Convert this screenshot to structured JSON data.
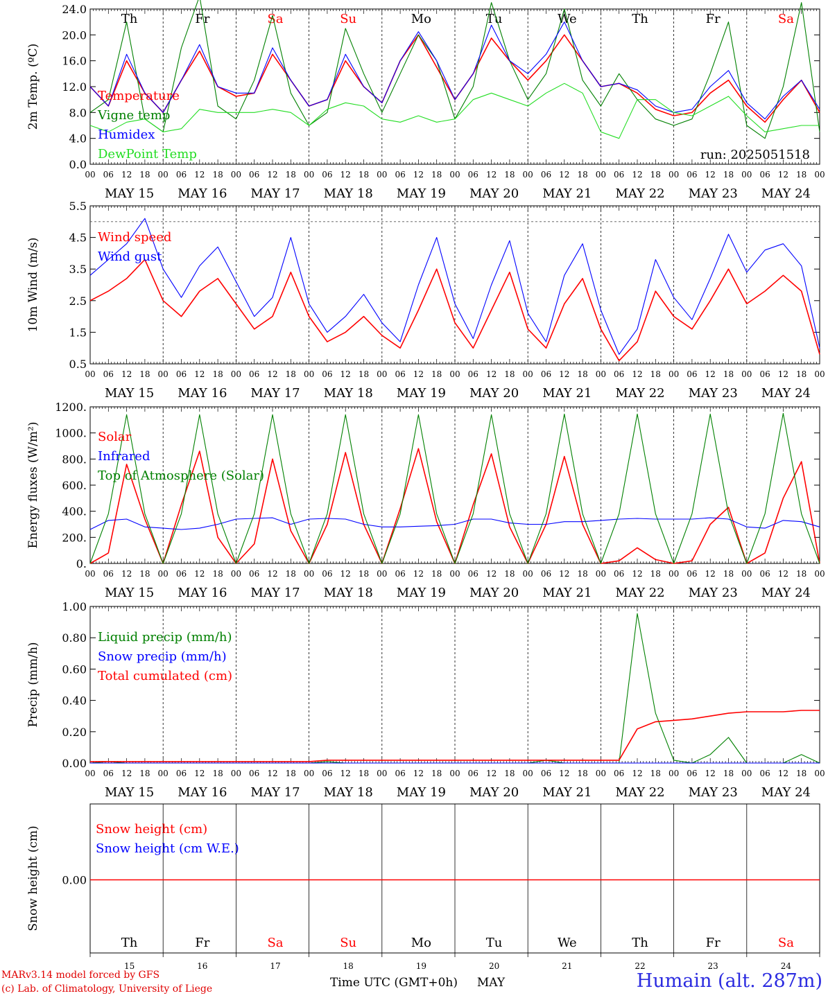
{
  "footer": {
    "credit_line1": "MARv3.14 model forced by GFS",
    "credit_line2": "(c) Lab. of Climatology, University of Liege",
    "station": "Humain (alt. 287m)",
    "time_axis_label": "Time UTC (GMT+0h)",
    "month": "MAY"
  },
  "colors": {
    "red": "#ff0000",
    "dark_green": "#008000",
    "blue": "#0000ff",
    "light_green": "#22dd22",
    "weekend": "#ff0000",
    "axis": "#000000"
  },
  "chart_data": [
    {
      "id": "temperature",
      "type": "line",
      "ylabel": "2m Temp. (ºC)",
      "ylim": [
        0,
        24
      ],
      "yticks": [
        "0.0",
        "4.0",
        "8.0",
        "12.0",
        "16.0",
        "20.0",
        "24.0"
      ],
      "annotation": "run: 2025051518",
      "day_labels": [
        "Th",
        "Fr",
        "Sa",
        "Su",
        "Mo",
        "Tu",
        "We",
        "Th",
        "Fr",
        "Sa"
      ],
      "weekend_days": [
        2,
        3,
        9
      ],
      "x_hours_per_point": 6,
      "series": [
        {
          "name": "Temperature",
          "color": "red",
          "values": [
            12,
            9,
            16,
            11,
            8,
            13,
            17.5,
            12,
            10.5,
            11,
            17,
            13,
            9,
            10,
            16,
            12,
            9.5,
            16,
            20,
            15,
            10,
            14,
            19.5,
            16,
            13,
            16,
            20,
            16,
            12,
            12.5,
            11,
            8.5,
            7.5,
            8,
            11,
            13,
            9,
            6.5,
            10,
            13,
            8
          ]
        },
        {
          "name": "Vigne temp",
          "color": "dark_green",
          "values": [
            8,
            10,
            22,
            7,
            5,
            18,
            26,
            9,
            7,
            13,
            23,
            11,
            6,
            8,
            21,
            14,
            8,
            14,
            20,
            16,
            7,
            12,
            25,
            16,
            10,
            14,
            24,
            13,
            9,
            14,
            10,
            7,
            6,
            7,
            14,
            22,
            6,
            4,
            12,
            25,
            5
          ]
        },
        {
          "name": "Humidex",
          "color": "blue",
          "values": [
            12,
            9,
            17,
            11,
            8,
            13,
            18.5,
            12,
            11,
            11,
            18,
            13,
            9,
            10,
            17,
            12,
            9.5,
            16,
            20.5,
            16,
            10,
            14,
            21.5,
            16,
            14,
            17,
            22,
            16,
            12,
            12.5,
            11.5,
            9,
            8,
            8.5,
            12,
            14.5,
            9.5,
            7,
            10.5,
            13,
            8.5
          ]
        },
        {
          "name": "DewPoint Temp",
          "color": "light_green",
          "values": [
            6,
            5,
            6.5,
            7,
            5,
            5.5,
            8.5,
            8,
            8,
            8,
            8.5,
            8,
            6,
            8.5,
            9.5,
            9,
            7,
            6.5,
            7.5,
            6.5,
            7,
            10,
            11,
            10,
            9,
            11,
            12.5,
            11,
            5,
            4,
            10,
            10,
            8,
            7.5,
            9,
            10.5,
            7.5,
            5,
            5.5,
            6,
            6
          ]
        }
      ]
    },
    {
      "id": "wind",
      "type": "line",
      "ylabel": "10m Wind (m/s)",
      "ylim": [
        0.5,
        5.5
      ],
      "yticks": [
        "0.5",
        "1.5",
        "2.5",
        "3.5",
        "4.5",
        "5.5"
      ],
      "reference_line": 5,
      "x_hours_per_point": 6,
      "series": [
        {
          "name": "Wind speed",
          "color": "red",
          "values": [
            2.5,
            2.8,
            3.2,
            3.8,
            2.5,
            2.0,
            2.8,
            3.2,
            2.4,
            1.6,
            2.0,
            3.4,
            2.0,
            1.2,
            1.5,
            2.0,
            1.4,
            1.0,
            2.2,
            3.5,
            1.8,
            1.0,
            2.2,
            3.4,
            1.6,
            1.0,
            2.4,
            3.2,
            1.6,
            0.6,
            1.2,
            2.8,
            2.0,
            1.6,
            2.5,
            3.5,
            2.4,
            2.8,
            3.3,
            2.8,
            0.8
          ]
        },
        {
          "name": "Wind gust",
          "color": "blue",
          "values": [
            3.3,
            3.8,
            4.3,
            5.1,
            3.5,
            2.6,
            3.6,
            4.2,
            3.1,
            2.0,
            2.6,
            4.5,
            2.4,
            1.5,
            2.0,
            2.7,
            1.8,
            1.2,
            3.0,
            4.5,
            2.4,
            1.3,
            3.0,
            4.4,
            2.1,
            1.2,
            3.3,
            4.3,
            2.2,
            0.8,
            1.6,
            3.8,
            2.6,
            1.9,
            3.2,
            4.6,
            3.4,
            4.1,
            4.3,
            3.6,
            1.0
          ]
        }
      ]
    },
    {
      "id": "energy",
      "type": "line",
      "ylabel": "Energy fluxes (W/m²)",
      "ylim": [
        0,
        1200
      ],
      "yticks": [
        "0.",
        "200.",
        "400.",
        "600.",
        "800.",
        "1000.",
        "1200."
      ],
      "x_hours_per_point": 6,
      "series": [
        {
          "name": "Solar",
          "color": "red",
          "values": [
            0,
            80,
            760,
            340,
            0,
            450,
            860,
            200,
            0,
            150,
            800,
            250,
            0,
            300,
            850,
            300,
            0,
            420,
            880,
            320,
            0,
            450,
            840,
            280,
            0,
            300,
            820,
            300,
            0,
            20,
            120,
            30,
            0,
            20,
            300,
            430,
            0,
            80,
            500,
            780,
            0
          ]
        },
        {
          "name": "Infrared",
          "color": "blue",
          "values": [
            260,
            330,
            340,
            280,
            270,
            260,
            270,
            300,
            340,
            345,
            350,
            300,
            340,
            345,
            340,
            300,
            280,
            280,
            285,
            290,
            300,
            340,
            340,
            310,
            300,
            300,
            320,
            320,
            330,
            340,
            345,
            340,
            340,
            340,
            350,
            340,
            280,
            270,
            330,
            320,
            280
          ]
        },
        {
          "name": "Top of Atmosphere (Solar)",
          "color": "dark_green",
          "values": [
            0,
            380,
            1140,
            380,
            0,
            380,
            1140,
            380,
            0,
            380,
            1140,
            380,
            0,
            380,
            1140,
            380,
            0,
            380,
            1140,
            380,
            0,
            380,
            1140,
            380,
            0,
            380,
            1145,
            380,
            0,
            380,
            1145,
            380,
            0,
            380,
            1145,
            380,
            0,
            380,
            1150,
            380,
            0
          ]
        }
      ]
    },
    {
      "id": "precip",
      "type": "line",
      "ylabel": "Precip (mm/h)",
      "ylim": [
        0,
        1.1
      ],
      "yticks": [
        "0.00",
        "0.20",
        "0.40",
        "0.60",
        "0.80",
        "1.00"
      ],
      "x_hours_per_point": 6,
      "series": [
        {
          "name": "Liquid precip (mm/h)",
          "color": "dark_green",
          "values": [
            0,
            0.01,
            0,
            0,
            0,
            0,
            0,
            0,
            0,
            0,
            0,
            0,
            0,
            0.01,
            0,
            0,
            0,
            0,
            0,
            0,
            0,
            0,
            0,
            0,
            0,
            0.02,
            0,
            0,
            0,
            0,
            1.05,
            0.35,
            0.02,
            0,
            0.06,
            0.18,
            0,
            0,
            0,
            0.06,
            0
          ]
        },
        {
          "name": "Snow precip (mm/h)",
          "color": "blue",
          "values": [
            0,
            0,
            0,
            0,
            0,
            0,
            0,
            0,
            0,
            0,
            0,
            0,
            0,
            0,
            0,
            0,
            0,
            0,
            0,
            0,
            0,
            0,
            0,
            0,
            0,
            0,
            0,
            0,
            0,
            0,
            0,
            0,
            0,
            0,
            0,
            0,
            0,
            0,
            0,
            0,
            0
          ]
        },
        {
          "name": "Total cumulated (cm)",
          "color": "red",
          "values": [
            0.01,
            0.01,
            0.01,
            0.01,
            0.01,
            0.01,
            0.01,
            0.01,
            0.01,
            0.01,
            0.01,
            0.01,
            0.01,
            0.02,
            0.02,
            0.02,
            0.02,
            0.02,
            0.02,
            0.02,
            0.02,
            0.02,
            0.02,
            0.02,
            0.02,
            0.02,
            0.02,
            0.02,
            0.02,
            0.02,
            0.24,
            0.29,
            0.3,
            0.31,
            0.33,
            0.35,
            0.36,
            0.36,
            0.36,
            0.37,
            0.37
          ]
        }
      ]
    },
    {
      "id": "snow",
      "type": "line",
      "ylabel": "Snow height (cm)",
      "yticks": [
        "0.00"
      ],
      "x_hours_per_point": 6,
      "day_labels": [
        "Th",
        "Fr",
        "Sa",
        "Su",
        "Mo",
        "Tu",
        "We",
        "Th",
        "Fr",
        "Sa"
      ],
      "weekend_days": [
        2,
        3,
        9
      ],
      "day_numbers": [
        "15",
        "16",
        "17",
        "18",
        "19",
        "20",
        "21",
        "22",
        "23",
        "24"
      ],
      "series": [
        {
          "name": "Snow height (cm)",
          "color": "red",
          "values": [
            0,
            0
          ]
        },
        {
          "name": "Snow height (cm W.E.)",
          "color": "blue",
          "values": []
        }
      ]
    }
  ],
  "x_axis": {
    "hour_labels": [
      "00",
      "06",
      "12",
      "18"
    ],
    "final_label": "00",
    "date_labels": [
      "MAY 15",
      "MAY 16",
      "MAY 17",
      "MAY 18",
      "MAY 19",
      "MAY 20",
      "MAY 21",
      "MAY 22",
      "MAY 23",
      "MAY 24"
    ]
  }
}
